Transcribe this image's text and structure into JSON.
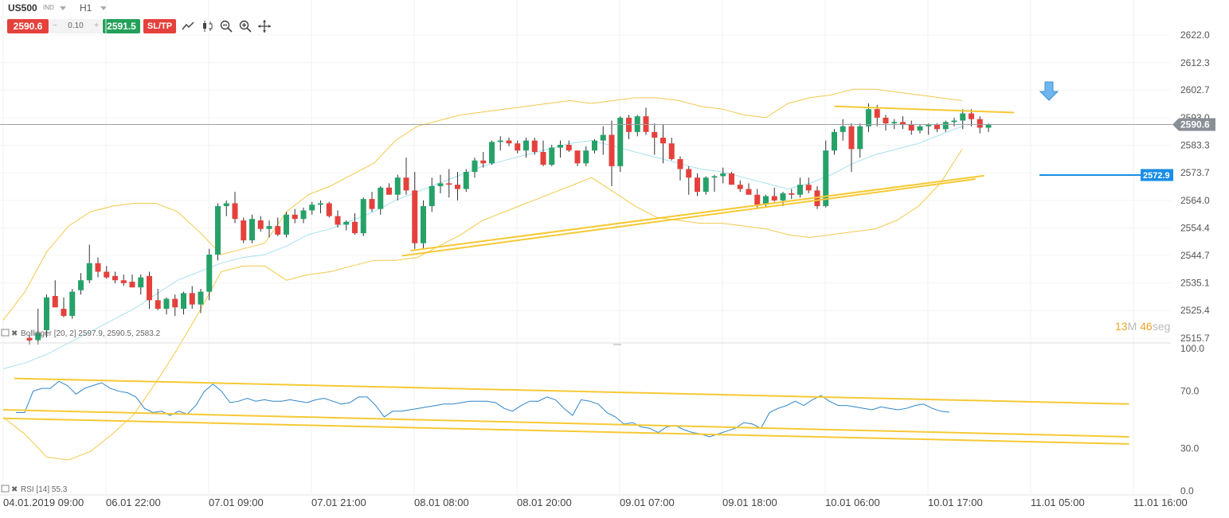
{
  "toolbar": {
    "symbol": "US500",
    "symbol_type": "IND",
    "timeframe": "H1",
    "sell_price": "2590.6",
    "spread": "0.10",
    "spread_minus": "−",
    "spread_plus": "+",
    "buy_price": "2591.5",
    "sltp_label": "SL/TP",
    "tools": [
      "trendline-icon",
      "chart-type-icon",
      "zoom-out-icon",
      "zoom-in-icon",
      "crosshair-icon"
    ]
  },
  "colors": {
    "bull": "#26a269",
    "bear": "#e5413c",
    "bollinger": "#f2c94c",
    "ma": "#a8e0ef",
    "trendline": "#f6c934",
    "rsi": "#2f86c9",
    "current_price_bg": "#8a8f96",
    "alert_bg": "#1a8ee6"
  },
  "chart_data": [
    {
      "type": "candlestick",
      "title": "US500",
      "timeframe": "H1",
      "ylim": [
        2513,
        2628
      ],
      "y_ticks": [
        "2622.0",
        "2612.3",
        "2602.7",
        "2593.0",
        "2583.3",
        "2573.7",
        "2564.0",
        "2554.4",
        "2544.7",
        "2535.1",
        "2525.4",
        "2515.7"
      ],
      "x_ticks": [
        {
          "label": "04.01.2019 09:00",
          "index": 0
        },
        {
          "label": "06.01 22:00",
          "index": 12
        },
        {
          "label": "07.01 09:00",
          "index": 24
        },
        {
          "label": "07.01 21:00",
          "index": 36
        },
        {
          "label": "08.01 08:00",
          "index": 48
        },
        {
          "label": "08.01 20:00",
          "index": 60
        },
        {
          "label": "09.01 07:00",
          "index": 72
        },
        {
          "label": "09.01 18:00",
          "index": 84
        },
        {
          "label": "10.01 06:00",
          "index": 96
        },
        {
          "label": "10.01 17:00",
          "index": 108
        },
        {
          "label": "11.01 05:00",
          "index": 120
        },
        {
          "label": "11.01 16:00",
          "index": 132
        }
      ],
      "candles": [
        [
          2515.8,
          2516.8,
          2513.5,
          2514.9
        ],
        [
          2515.0,
          2526.0,
          2513.5,
          2517.5
        ],
        [
          2518.5,
          2531.0,
          2516.0,
          2530.0
        ],
        [
          2530.5,
          2536.0,
          2527.0,
          2526.5
        ],
        [
          2526.0,
          2530.0,
          2523.0,
          2523.5
        ],
        [
          2523.5,
          2533.0,
          2522.5,
          2532.0
        ],
        [
          2532.5,
          2538.5,
          2531.0,
          2536.0
        ],
        [
          2536.0,
          2548.5,
          2535.0,
          2542.0
        ],
        [
          2542.0,
          2544.0,
          2537.0,
          2539.0
        ],
        [
          2539.0,
          2541.0,
          2536.5,
          2537.0
        ],
        [
          2537.5,
          2539.0,
          2535.0,
          2536.0
        ],
        [
          2536.0,
          2538.0,
          2534.0,
          2535.0
        ],
        [
          2535.5,
          2538.0,
          2533.5,
          2533.5
        ],
        [
          2533.5,
          2538.0,
          2531.0,
          2537.0
        ],
        [
          2537.5,
          2539.0,
          2526.0,
          2529.0
        ],
        [
          2529.0,
          2533.0,
          2525.5,
          2526.0
        ],
        [
          2526.0,
          2530.0,
          2524.0,
          2529.5
        ],
        [
          2529.5,
          2531.0,
          2523.5,
          2526.5
        ],
        [
          2526.0,
          2532.0,
          2524.0,
          2531.5
        ],
        [
          2531.5,
          2534.0,
          2526.0,
          2527.5
        ],
        [
          2527.5,
          2533.0,
          2524.5,
          2532.0
        ],
        [
          2532.0,
          2547.0,
          2529.0,
          2545.0
        ],
        [
          2545.0,
          2563.0,
          2543.0,
          2562.0
        ],
        [
          2562.0,
          2564.0,
          2558.5,
          2563.0
        ],
        [
          2563.0,
          2567.0,
          2556.0,
          2557.5
        ],
        [
          2557.0,
          2558.0,
          2549.0,
          2550.0
        ],
        [
          2550.0,
          2559.0,
          2549.0,
          2557.5
        ],
        [
          2557.0,
          2558.5,
          2553.0,
          2554.0
        ],
        [
          2554.0,
          2557.0,
          2551.0,
          2555.0
        ],
        [
          2555.0,
          2558.0,
          2551.5,
          2552.0
        ],
        [
          2552.0,
          2560.0,
          2551.0,
          2559.0
        ],
        [
          2559.0,
          2561.0,
          2556.0,
          2557.5
        ],
        [
          2557.5,
          2561.5,
          2556.0,
          2560.5
        ],
        [
          2560.5,
          2563.5,
          2559.0,
          2562.5
        ],
        [
          2562.5,
          2564.0,
          2559.5,
          2563.0
        ],
        [
          2563.0,
          2563.5,
          2558.0,
          2558.5
        ],
        [
          2558.5,
          2560.5,
          2554.5,
          2555.5
        ],
        [
          2555.5,
          2557.0,
          2553.5,
          2556.5
        ],
        [
          2556.5,
          2559.5,
          2552.0,
          2552.5
        ],
        [
          2552.5,
          2565.0,
          2551.5,
          2564.5
        ],
        [
          2564.5,
          2567.0,
          2560.0,
          2561.0
        ],
        [
          2561.0,
          2569.0,
          2559.0,
          2568.5
        ],
        [
          2568.5,
          2570.0,
          2566.0,
          2566.0
        ],
        [
          2566.0,
          2573.0,
          2564.0,
          2572.0
        ],
        [
          2572.0,
          2579.0,
          2566.0,
          2567.5
        ],
        [
          2567.5,
          2574.0,
          2547.0,
          2549.0
        ],
        [
          2549.0,
          2564.0,
          2547.0,
          2562.0
        ],
        [
          2562.0,
          2572.0,
          2560.0,
          2569.0
        ],
        [
          2569.0,
          2573.0,
          2566.5,
          2570.0
        ],
        [
          2570.0,
          2575.0,
          2565.0,
          2569.5
        ],
        [
          2569.5,
          2574.0,
          2564.0,
          2568.0
        ],
        [
          2568.0,
          2575.0,
          2567.0,
          2574.0
        ],
        [
          2574.0,
          2579.0,
          2572.0,
          2578.0
        ],
        [
          2578.0,
          2581.0,
          2575.5,
          2577.0
        ],
        [
          2577.0,
          2585.0,
          2576.5,
          2584.5
        ],
        [
          2584.5,
          2586.5,
          2581.5,
          2585.0
        ],
        [
          2585.0,
          2586.0,
          2583.0,
          2584.0
        ],
        [
          2584.0,
          2585.0,
          2580.5,
          2581.5
        ],
        [
          2581.5,
          2586.0,
          2579.0,
          2585.0
        ],
        [
          2585.0,
          2586.0,
          2580.0,
          2581.0
        ],
        [
          2581.0,
          2585.0,
          2576.0,
          2576.5
        ],
        [
          2576.5,
          2583.5,
          2576.0,
          2582.5
        ],
        [
          2582.5,
          2585.0,
          2579.0,
          2583.5
        ],
        [
          2583.5,
          2585.0,
          2581.0,
          2581.5
        ],
        [
          2581.5,
          2580.5,
          2576.0,
          2577.0
        ],
        [
          2577.0,
          2583.0,
          2576.0,
          2581.5
        ],
        [
          2581.5,
          2585.5,
          2580.5,
          2585.0
        ],
        [
          2585.0,
          2590.0,
          2580.0,
          2587.0
        ],
        [
          2587.0,
          2592.0,
          2569.0,
          2576.0
        ],
        [
          2576.0,
          2593.5,
          2574.0,
          2593.0
        ],
        [
          2593.0,
          2594.0,
          2585.5,
          2588.0
        ],
        [
          2588.0,
          2594.0,
          2586.5,
          2593.5
        ],
        [
          2593.5,
          2596.5,
          2587.0,
          2588.0
        ],
        [
          2588.0,
          2591.0,
          2580.0,
          2586.0
        ],
        [
          2586.0,
          2590.5,
          2577.0,
          2584.0
        ],
        [
          2584.0,
          2586.0,
          2578.0,
          2578.5
        ],
        [
          2578.5,
          2579.5,
          2571.0,
          2575.0
        ],
        [
          2575.0,
          2576.0,
          2566.0,
          2572.0
        ],
        [
          2572.0,
          2573.5,
          2565.5,
          2567.0
        ],
        [
          2567.0,
          2572.5,
          2566.0,
          2572.0
        ],
        [
          2572.0,
          2573.0,
          2567.0,
          2572.5
        ],
        [
          2572.5,
          2575.5,
          2570.0,
          2573.5
        ],
        [
          2573.5,
          2574.0,
          2569.5,
          2569.5
        ],
        [
          2569.5,
          2571.0,
          2567.0,
          2568.0
        ],
        [
          2568.0,
          2570.0,
          2566.0,
          2566.0
        ],
        [
          2566.0,
          2568.0,
          2561.0,
          2562.5
        ],
        [
          2562.5,
          2566.0,
          2561.5,
          2565.5
        ],
        [
          2565.5,
          2568.5,
          2563.5,
          2564.0
        ],
        [
          2564.0,
          2567.0,
          2562.0,
          2566.5
        ],
        [
          2566.5,
          2568.0,
          2564.5,
          2566.0
        ],
        [
          2566.0,
          2572.0,
          2565.0,
          2569.5
        ],
        [
          2569.5,
          2572.0,
          2566.5,
          2567.5
        ],
        [
          2567.5,
          2569.0,
          2561.0,
          2562.0
        ],
        [
          2562.0,
          2585.0,
          2561.5,
          2581.5
        ],
        [
          2581.5,
          2589.0,
          2580.0,
          2588.0
        ],
        [
          2588.0,
          2592.5,
          2585.0,
          2590.0
        ],
        [
          2590.0,
          2591.0,
          2574.0,
          2582.0
        ],
        [
          2582.0,
          2591.0,
          2579.0,
          2590.0
        ],
        [
          2590.0,
          2598.0,
          2588.0,
          2596.0
        ],
        [
          2596.0,
          2597.5,
          2590.0,
          2593.0
        ],
        [
          2593.0,
          2594.0,
          2588.5,
          2591.0
        ],
        [
          2591.0,
          2592.5,
          2589.0,
          2591.5
        ],
        [
          2591.5,
          2593.5,
          2589.0,
          2590.5
        ],
        [
          2590.5,
          2592.0,
          2587.0,
          2588.5
        ],
        [
          2588.5,
          2590.5,
          2587.5,
          2590.0
        ],
        [
          2590.0,
          2591.0,
          2587.0,
          2590.5
        ],
        [
          2590.5,
          2591.0,
          2588.0,
          2589.0
        ],
        [
          2589.0,
          2592.0,
          2588.0,
          2591.5
        ],
        [
          2591.5,
          2593.0,
          2590.0,
          2592.0
        ],
        [
          2592.0,
          2596.0,
          2589.0,
          2594.5
        ],
        [
          2594.5,
          2596.0,
          2590.0,
          2592.5
        ],
        [
          2592.5,
          2593.5,
          2587.5,
          2589.5
        ],
        [
          2589.5,
          2591.0,
          2588.0,
          2590.6
        ]
      ],
      "bollinger": {
        "label": "Bollinger [20, 2] 2597.9, 2590.5, 2583.2",
        "upper": [
          2522,
          2532,
          2546,
          2555,
          2560,
          2562,
          2563,
          2563,
          2560,
          2553,
          2545,
          2547,
          2549,
          2560,
          2566,
          2569,
          2573,
          2577,
          2585,
          2590,
          2592,
          2594,
          2595,
          2596,
          2597,
          2598,
          2599,
          2598,
          2599,
          2600,
          2600,
          2599,
          2597,
          2596,
          2594,
          2593,
          2598,
          2600,
          2601,
          2603,
          2603,
          2602,
          2601,
          2600,
          2599
        ],
        "middle": [
          2505,
          2507,
          2510,
          2514,
          2518,
          2522,
          2526,
          2531,
          2536,
          2539,
          2542,
          2544,
          2545,
          2548,
          2552,
          2554,
          2557,
          2560,
          2564,
          2567,
          2570,
          2573,
          2576,
          2578,
          2580,
          2582,
          2584,
          2585,
          2583,
          2581,
          2579,
          2577,
          2575,
          2574,
          2572,
          2570,
          2568,
          2570,
          2573,
          2577,
          2580,
          2582,
          2584,
          2587,
          2590
        ],
        "lower": [
          2488,
          2482,
          2474,
          2473,
          2476,
          2482,
          2489,
          2500,
          2512,
          2525,
          2539,
          2541,
          2541,
          2536,
          2538,
          2539,
          2541,
          2543,
          2543,
          2544,
          2548,
          2552,
          2557,
          2560,
          2563,
          2566,
          2569,
          2572,
          2567,
          2562,
          2558,
          2557,
          2556,
          2556,
          2555,
          2554,
          2552,
          2551,
          2552,
          2553,
          2554,
          2557,
          2562,
          2570,
          2582
        ]
      },
      "annotations": {
        "current_price": "2590.6",
        "alert_price": "2572.9",
        "alert_value": 2572.9,
        "countdown_value": "13",
        "countdown_unit_m": "M",
        "countdown_seconds": "46",
        "countdown_unit_s": "seg",
        "trendlines": [
          {
            "from": [
              44.5,
              2546.4
            ],
            "to": [
              111.5,
              2572.7
            ]
          },
          {
            "from": [
              43.5,
              2544.6
            ],
            "to": [
              110.5,
              2571.5
            ]
          },
          {
            "from": [
              94,
              2597.0
            ],
            "to": [
              115,
              2594.8
            ]
          }
        ]
      }
    },
    {
      "type": "line",
      "title": "RSI",
      "label": "RSI [14] 55.3",
      "ylim": [
        0,
        100
      ],
      "y_ticks": [
        "100.0",
        "70.0",
        "30.0",
        "0.0"
      ],
      "series": [
        {
          "name": "RSI [14] 55.3",
          "values": [
            55,
            55,
            70,
            72,
            72,
            77,
            74,
            68,
            72,
            74,
            76,
            72,
            70,
            69,
            66,
            58,
            55,
            56,
            53,
            56,
            54,
            60,
            70,
            75,
            70,
            62,
            63,
            65,
            63,
            64,
            63,
            63,
            64,
            63,
            62,
            64,
            65,
            63,
            61,
            62,
            66,
            66,
            60,
            52,
            56,
            56,
            57,
            58,
            59,
            60,
            61,
            61,
            62,
            63,
            63,
            63,
            62,
            58,
            56,
            60,
            63,
            63,
            66,
            64,
            58,
            53,
            64,
            63,
            61,
            55,
            52,
            47,
            48,
            45,
            44,
            41,
            45,
            46,
            43,
            41,
            40,
            38,
            40,
            42,
            44,
            48,
            47,
            44,
            55,
            58,
            60,
            63,
            60,
            64,
            67,
            63,
            60,
            60,
            59,
            58,
            57,
            59,
            58,
            57,
            58,
            60,
            61,
            58,
            56,
            55.3
          ],
          "x_start": 1.5
        }
      ],
      "trendlines": [
        {
          "from": [
            1.3,
            79
          ],
          "to": [
            131.5,
            61
          ]
        },
        {
          "from": [
            0,
            57
          ],
          "to": [
            131.5,
            38
          ]
        },
        {
          "from": [
            0,
            51
          ],
          "to": [
            131.5,
            33
          ]
        }
      ]
    }
  ]
}
